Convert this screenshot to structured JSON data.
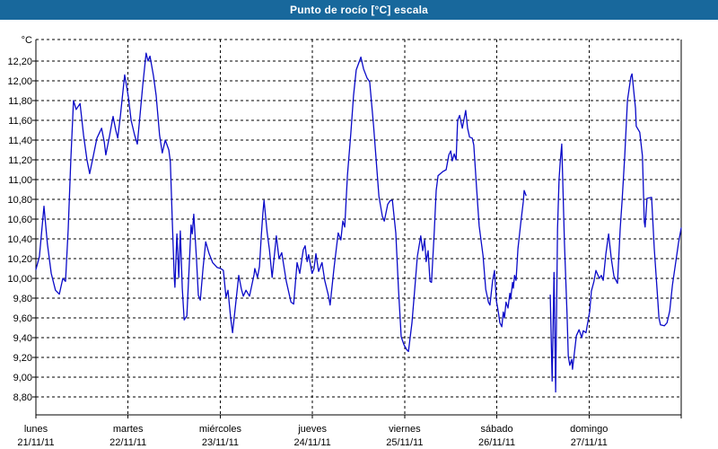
{
  "window": {
    "title": "Punto de rocío [°C] escala"
  },
  "colors": {
    "titlebar_bg": "#18689c",
    "titlebar_text": "#ffffff",
    "window_border": "#18689c",
    "plot_bg": "#ffffff",
    "grid": "#000000",
    "axis": "#000000",
    "label_text": "#000000",
    "line": "#0a0ac8"
  },
  "chart_data": {
    "type": "line",
    "title": "Punto de rocío [°C] escala",
    "ylabel": "°C",
    "y_unit_label": "°C",
    "ylim": [
      8.62,
      12.42
    ],
    "y_ticks": [
      12.2,
      12.0,
      11.8,
      11.6,
      11.4,
      11.2,
      11.0,
      10.8,
      10.6,
      10.4,
      10.2,
      10.0,
      9.8,
      9.6,
      9.4,
      9.2,
      9.0,
      8.8
    ],
    "y_tick_decimal_separator": ",",
    "grid": true,
    "x_unit": "hours since lunes 21/11/11 00:00",
    "x_range_hours": [
      0,
      168
    ],
    "x_day_labels": [
      {
        "name": "lunes",
        "date": "21/11/11",
        "hour": 0
      },
      {
        "name": "martes",
        "date": "22/11/11",
        "hour": 24
      },
      {
        "name": "miércoles",
        "date": "23/11/11",
        "hour": 48
      },
      {
        "name": "jueves",
        "date": "24/11/11",
        "hour": 72
      },
      {
        "name": "viernes",
        "date": "25/11/11",
        "hour": 96
      },
      {
        "name": "sábado",
        "date": "26/11/11",
        "hour": 120
      },
      {
        "name": "domingo",
        "date": "27/11/11",
        "hour": 144
      }
    ],
    "note": "data gap on sábado between ~07:30 and ~13:30",
    "series": [
      {
        "name": "Punto de rocío [°C]",
        "color": "#0a0ac8",
        "segments": [
          [
            [
              0,
              10.09
            ],
            [
              0.9,
              10.22
            ],
            [
              2.1,
              10.73
            ],
            [
              3,
              10.35
            ],
            [
              4,
              10.05
            ],
            [
              5.1,
              9.88
            ],
            [
              6.1,
              9.84
            ],
            [
              7,
              10.0
            ],
            [
              7.7,
              9.97
            ],
            [
              8.4,
              10.5
            ],
            [
              9.1,
              11.2
            ],
            [
              9.8,
              11.8
            ],
            [
              10.5,
              11.71
            ],
            [
              11.5,
              11.77
            ],
            [
              12.4,
              11.45
            ],
            [
              13.3,
              11.2
            ],
            [
              14,
              11.06
            ],
            [
              15,
              11.25
            ],
            [
              15.9,
              11.42
            ],
            [
              17.1,
              11.52
            ],
            [
              17.8,
              11.38
            ],
            [
              18.2,
              11.25
            ],
            [
              19.2,
              11.45
            ],
            [
              20.1,
              11.64
            ],
            [
              20.8,
              11.5
            ],
            [
              21.3,
              11.42
            ],
            [
              22,
              11.65
            ],
            [
              23.1,
              12.06
            ],
            [
              23.6,
              11.95
            ],
            [
              24.1,
              11.83
            ],
            [
              24.8,
              11.6
            ],
            [
              25.7,
              11.45
            ],
            [
              26.4,
              11.36
            ],
            [
              27.1,
              11.65
            ],
            [
              27.8,
              11.95
            ],
            [
              28.7,
              12.28
            ],
            [
              29.2,
              12.2
            ],
            [
              29.7,
              12.25
            ],
            [
              30.6,
              12.05
            ],
            [
              31.3,
              11.85
            ],
            [
              32.2,
              11.45
            ],
            [
              32.9,
              11.27
            ],
            [
              33.7,
              11.4
            ],
            [
              34.6,
              11.3
            ],
            [
              35,
              11.18
            ],
            [
              35.5,
              10.6
            ],
            [
              36,
              10.02
            ],
            [
              36.2,
              9.91
            ],
            [
              36.7,
              10.45
            ],
            [
              37.2,
              10.01
            ],
            [
              37.6,
              10.48
            ],
            [
              38.1,
              9.9
            ],
            [
              38.6,
              9.58
            ],
            [
              39.3,
              9.62
            ],
            [
              40,
              10.2
            ],
            [
              40.4,
              10.54
            ],
            [
              40.7,
              10.45
            ],
            [
              41.1,
              10.65
            ],
            [
              41.8,
              10.2
            ],
            [
              42.3,
              9.83
            ],
            [
              42.8,
              9.78
            ],
            [
              43.5,
              10.1
            ],
            [
              44.2,
              10.37
            ],
            [
              45.1,
              10.25
            ],
            [
              46,
              10.16
            ],
            [
              47.2,
              10.11
            ],
            [
              48.1,
              10.1
            ],
            [
              48.8,
              10.08
            ],
            [
              49.5,
              9.81
            ],
            [
              50,
              9.88
            ],
            [
              50.7,
              9.6
            ],
            [
              51.2,
              9.45
            ],
            [
              51.9,
              9.7
            ],
            [
              52.8,
              10.03
            ],
            [
              53.5,
              9.89
            ],
            [
              54,
              9.82
            ],
            [
              54.7,
              9.88
            ],
            [
              55.6,
              9.82
            ],
            [
              56.8,
              10.04
            ],
            [
              57,
              10.1
            ],
            [
              57.7,
              10.01
            ],
            [
              58.2,
              10.12
            ],
            [
              58.7,
              10.44
            ],
            [
              59.1,
              10.66
            ],
            [
              59.4,
              10.79
            ],
            [
              60.2,
              10.47
            ],
            [
              60.8,
              10.29
            ],
            [
              61.5,
              10.01
            ],
            [
              62.6,
              10.43
            ],
            [
              63.3,
              10.2
            ],
            [
              64,
              10.26
            ],
            [
              65.2,
              9.97
            ],
            [
              66.4,
              9.76
            ],
            [
              67.1,
              9.74
            ],
            [
              68,
              10.16
            ],
            [
              68.7,
              10.05
            ],
            [
              69.6,
              10.29
            ],
            [
              70.1,
              10.33
            ],
            [
              70.6,
              10.17
            ],
            [
              71,
              10.24
            ],
            [
              71.9,
              10.05
            ],
            [
              72.4,
              10.1
            ],
            [
              72.9,
              10.25
            ],
            [
              73.6,
              10.07
            ],
            [
              74.5,
              10.16
            ],
            [
              75.2,
              9.98
            ],
            [
              76.2,
              9.82
            ],
            [
              76.6,
              9.73
            ],
            [
              77.6,
              10.1
            ],
            [
              78.7,
              10.46
            ],
            [
              79.4,
              10.39
            ],
            [
              79.9,
              10.58
            ],
            [
              80.4,
              10.52
            ],
            [
              81.1,
              11.04
            ],
            [
              82,
              11.47
            ],
            [
              82.7,
              11.85
            ],
            [
              83.4,
              12.11
            ],
            [
              84.6,
              12.24
            ],
            [
              85.3,
              12.12
            ],
            [
              86.2,
              12.03
            ],
            [
              86.9,
              11.99
            ],
            [
              87.9,
              11.55
            ],
            [
              88.6,
              11.19
            ],
            [
              89.3,
              10.83
            ],
            [
              90.2,
              10.63
            ],
            [
              90.7,
              10.58
            ],
            [
              91.6,
              10.75
            ],
            [
              92.3,
              10.79
            ],
            [
              92.8,
              10.79
            ],
            [
              93.7,
              10.46
            ],
            [
              94.4,
              9.89
            ],
            [
              95.1,
              9.41
            ],
            [
              95.8,
              9.33
            ],
            [
              96.5,
              9.28
            ],
            [
              97,
              9.26
            ],
            [
              97.9,
              9.55
            ],
            [
              98.6,
              9.88
            ],
            [
              99.3,
              10.22
            ],
            [
              100.2,
              10.43
            ],
            [
              100.7,
              10.28
            ],
            [
              101.2,
              10.39
            ],
            [
              101.6,
              10.17
            ],
            [
              102.1,
              10.28
            ],
            [
              102.6,
              9.97
            ],
            [
              103,
              9.96
            ],
            [
              103.7,
              10.46
            ],
            [
              104.2,
              10.89
            ],
            [
              104.7,
              11.04
            ],
            [
              105.9,
              11.08
            ],
            [
              106.8,
              11.1
            ],
            [
              107.5,
              11.25
            ],
            [
              108,
              11.29
            ],
            [
              108.4,
              11.19
            ],
            [
              108.9,
              11.26
            ],
            [
              109.4,
              11.2
            ],
            [
              109.8,
              11.6
            ],
            [
              110.3,
              11.65
            ],
            [
              111,
              11.52
            ],
            [
              111.9,
              11.7
            ],
            [
              112.4,
              11.52
            ],
            [
              112.9,
              11.43
            ],
            [
              113.6,
              11.42
            ],
            [
              114,
              11.35
            ],
            [
              114.7,
              10.93
            ],
            [
              115.4,
              10.53
            ],
            [
              116.4,
              10.23
            ],
            [
              117.1,
              9.89
            ],
            [
              117.8,
              9.76
            ],
            [
              118.2,
              9.73
            ],
            [
              118.9,
              9.98
            ],
            [
              119.4,
              10.08
            ],
            [
              119.9,
              9.77
            ],
            [
              120.3,
              9.68
            ],
            [
              120.8,
              9.55
            ],
            [
              121.3,
              9.51
            ],
            [
              121.7,
              9.66
            ],
            [
              122,
              9.6
            ],
            [
              122.4,
              9.76
            ],
            [
              122.9,
              9.7
            ],
            [
              123.4,
              9.85
            ],
            [
              123.6,
              9.79
            ],
            [
              124.1,
              9.96
            ],
            [
              124.3,
              9.9
            ],
            [
              124.6,
              10.03
            ],
            [
              125,
              9.98
            ],
            [
              125.5,
              10.3
            ],
            [
              126.2,
              10.55
            ],
            [
              126.9,
              10.78
            ],
            [
              127.1,
              10.89
            ],
            [
              127.6,
              10.84
            ]
          ],
          [
            [
              133.9,
              9.83
            ],
            [
              134.4,
              8.96
            ],
            [
              134.9,
              10.06
            ],
            [
              135.3,
              8.85
            ],
            [
              135.8,
              10.5
            ],
            [
              136.2,
              11.0
            ],
            [
              136.5,
              11.18
            ],
            [
              136.9,
              11.36
            ],
            [
              137.6,
              10.36
            ],
            [
              138.3,
              9.61
            ],
            [
              138.6,
              9.21
            ],
            [
              139,
              9.12
            ],
            [
              139.5,
              9.18
            ],
            [
              139.7,
              9.08
            ],
            [
              140.7,
              9.42
            ],
            [
              141.4,
              9.48
            ],
            [
              142.1,
              9.4
            ],
            [
              142.5,
              9.47
            ],
            [
              143.2,
              9.45
            ],
            [
              144.2,
              9.67
            ],
            [
              144.6,
              9.87
            ],
            [
              145.3,
              9.97
            ],
            [
              145.8,
              10.08
            ],
            [
              146.7,
              10.0
            ],
            [
              147.2,
              10.03
            ],
            [
              147.7,
              9.98
            ],
            [
              148.4,
              10.25
            ],
            [
              149.1,
              10.45
            ],
            [
              149.8,
              10.2
            ],
            [
              150.5,
              10.02
            ],
            [
              151.4,
              9.95
            ],
            [
              152.1,
              10.5
            ],
            [
              152.6,
              10.78
            ],
            [
              153.3,
              11.24
            ],
            [
              154,
              11.8
            ],
            [
              154.9,
              12.04
            ],
            [
              155.2,
              12.07
            ],
            [
              156.1,
              11.72
            ],
            [
              156.3,
              11.54
            ],
            [
              157.2,
              11.48
            ],
            [
              157.9,
              11.24
            ],
            [
              158.4,
              10.57
            ],
            [
              158.6,
              10.52
            ],
            [
              159.1,
              10.81
            ],
            [
              160.3,
              10.82
            ],
            [
              161,
              10.3
            ],
            [
              161.9,
              9.78
            ],
            [
              162.2,
              9.6
            ],
            [
              162.6,
              9.53
            ],
            [
              163.6,
              9.52
            ],
            [
              164.3,
              9.55
            ],
            [
              165,
              9.67
            ],
            [
              165.7,
              9.93
            ],
            [
              166.6,
              10.17
            ],
            [
              167.3,
              10.36
            ],
            [
              168,
              10.51
            ]
          ]
        ]
      }
    ]
  }
}
